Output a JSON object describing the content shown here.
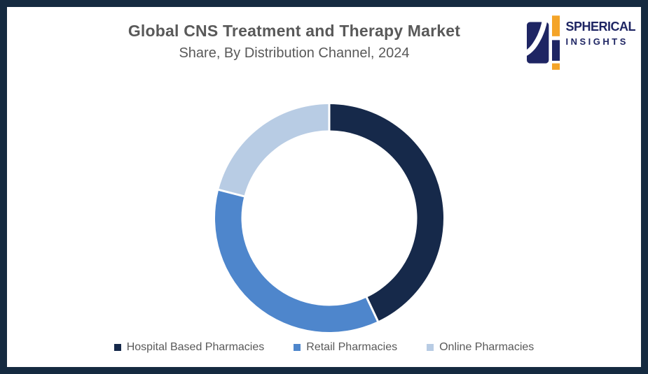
{
  "page": {
    "background": "#FFFFFF",
    "border_color": "#152A40"
  },
  "header": {
    "title": "Global CNS Treatment and Therapy Market",
    "subtitle": "Share, By Distribution Channel, 2024",
    "text_color": "#595959"
  },
  "logo": {
    "line1": "SPHERICAL",
    "line2": "INSIGHTS",
    "navy": "#1E2563",
    "orange": "#F4A428"
  },
  "chart_data": {
    "type": "pie",
    "variant": "donut",
    "title": "Global CNS Treatment and Therapy Market Share, By Distribution Channel, 2024",
    "categories": [
      "Hospital Based Pharmacies",
      "Retail Pharmacies",
      "Online Pharmacies"
    ],
    "values": [
      43,
      36,
      21
    ],
    "colors": [
      "#16294A",
      "#4E86CC",
      "#B8CCE4"
    ],
    "start_angle_deg": 0,
    "clockwise": true,
    "inner_radius_ratio": 0.77,
    "outer_radius_px": 163,
    "segment_gap_color": "#FFFFFF",
    "data_labels": "none",
    "legend_position": "bottom"
  },
  "legend": {
    "text_color": "#595959",
    "items": [
      {
        "label": "Hospital Based Pharmacies",
        "color": "#16294A"
      },
      {
        "label": "Retail Pharmacies",
        "color": "#4E86CC"
      },
      {
        "label": "Online Pharmacies",
        "color": "#B8CCE4"
      }
    ]
  }
}
